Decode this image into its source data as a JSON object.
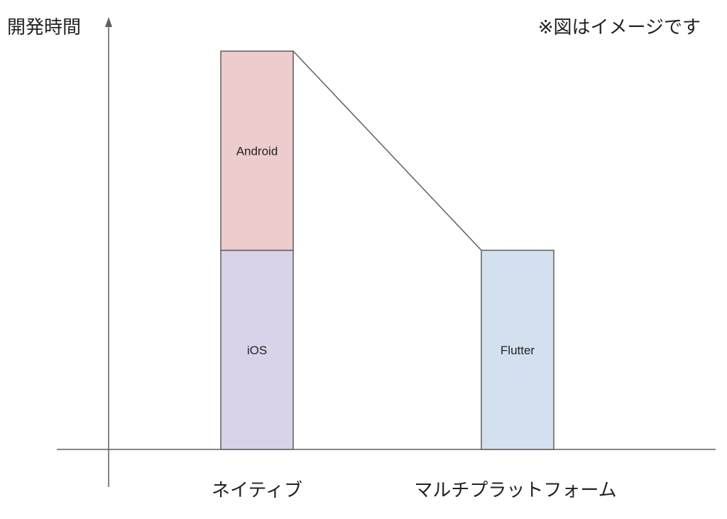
{
  "chart_data": {
    "type": "bar",
    "stacked": true,
    "ylabel": "開発時間",
    "note": "※図はイメージです",
    "categories": [
      "ネイティブ",
      "マルチプラットフォーム"
    ],
    "series": [
      {
        "name": "iOS",
        "values": [
          1,
          0
        ],
        "color": "#d9d2e9"
      },
      {
        "name": "Android",
        "values": [
          1,
          0
        ],
        "color": "#eccccc"
      },
      {
        "name": "Flutter",
        "values": [
          0,
          1
        ],
        "color": "#d4e0ef"
      }
    ],
    "ylim": [
      0,
      2
    ],
    "connector_line": true,
    "bar_stroke_color": "#5f5f5f",
    "axis_color": "#5f5f5f"
  }
}
